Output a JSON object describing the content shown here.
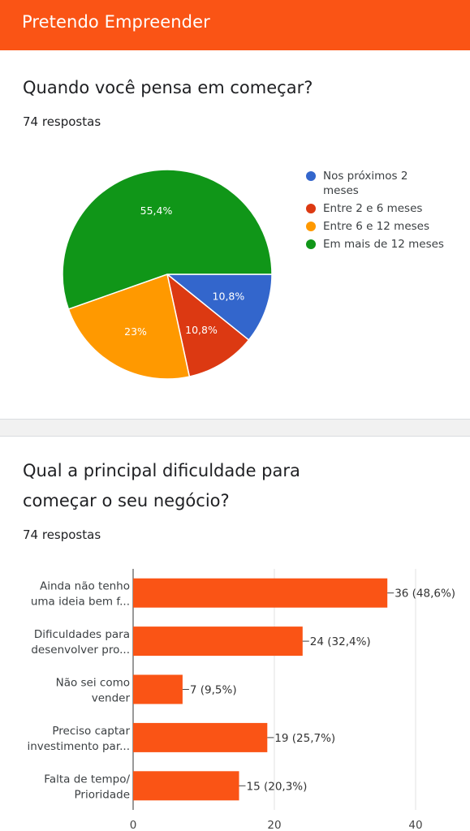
{
  "header": {
    "title": "Pretendo Empreender"
  },
  "questions": [
    {
      "title": "Quando você pensa em começar?",
      "responses": "74 respostas",
      "chart_data": {
        "type": "pie",
        "labels": [
          "Nos próximos 2 meses",
          "Entre 2 e 6 meses",
          "Entre 6 e 12 meses",
          "Em mais de 12 meses"
        ],
        "values": [
          10.8,
          10.8,
          23,
          55.4
        ],
        "value_labels": [
          "10,8%",
          "10,8%",
          "23%",
          "55,4%"
        ],
        "colors": [
          "#3366cc",
          "#dc3912",
          "#ff9900",
          "#109618"
        ],
        "legend_position": "right"
      }
    },
    {
      "title_lines": [
        "Qual a principal dificuldade para",
        "começar o seu negócio?"
      ],
      "responses": "74 respostas",
      "chart_data": {
        "type": "bar",
        "orientation": "horizontal",
        "categories": [
          [
            "Ainda não tenho",
            "uma ideia bem f..."
          ],
          [
            "Dificuldades para",
            "desenvolver pro..."
          ],
          [
            "Não sei como",
            "vender"
          ],
          [
            "Preciso captar",
            "investimento par..."
          ],
          [
            "Falta de tempo/",
            "Prioridade"
          ]
        ],
        "values": [
          36,
          24,
          7,
          19,
          15
        ],
        "value_labels": [
          "36 (48,6%)",
          "24 (32,4%)",
          "7 (9,5%)",
          "19 (25,7%)",
          "15 (20,3%)"
        ],
        "xlim": [
          0,
          40
        ],
        "ticks": [
          "0",
          "20",
          "40"
        ],
        "tick_values": [
          0,
          20,
          40
        ],
        "bar_color": "#fa5415",
        "grid": true
      }
    }
  ]
}
